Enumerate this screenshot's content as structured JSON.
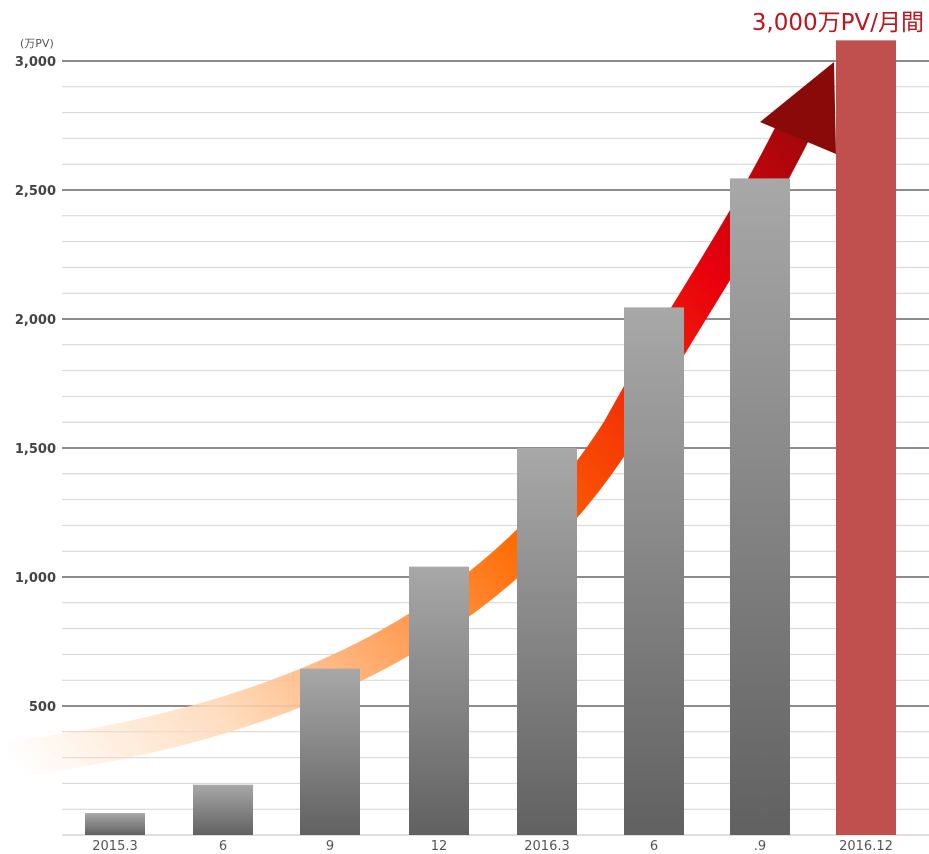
{
  "headline": "3,000万PV/月間",
  "chart_data": {
    "type": "bar",
    "unit_label": "(万PV)",
    "categories": [
      "2015.3",
      "6",
      "9",
      "12",
      "2016.3",
      "6",
      ".9",
      "2016.12"
    ],
    "values": [
      85,
      195,
      645,
      1040,
      1500,
      2045,
      2545,
      3080
    ],
    "highlight_index": 7,
    "ylim": [
      0,
      3000
    ],
    "yticks": [
      500,
      1000,
      1500,
      2000,
      2500,
      3000
    ],
    "ytick_labels": [
      "500",
      "1,000",
      "1,500",
      "2,000",
      "2,500",
      "3,000"
    ],
    "minor_gridlines": true,
    "colors": {
      "bar_top": "#a8a8a8",
      "bar_bottom": "#616161",
      "highlight": "#c0504d",
      "headline": "#c0141c",
      "arrow_start": "#ffd9b8",
      "arrow_mid": "#ff6a00",
      "arrow_end": "#e8000d",
      "arrow_head": "#8a0a0a"
    }
  }
}
